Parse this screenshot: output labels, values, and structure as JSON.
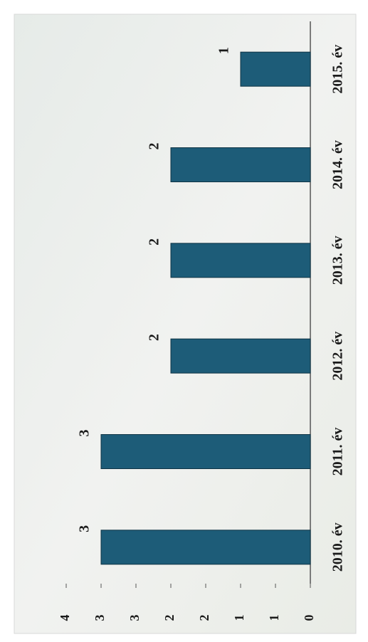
{
  "chart_data": {
    "type": "bar",
    "orientation": "horizontal",
    "categories": [
      "2010. év",
      "2011. év",
      "2012. év",
      "2013. év",
      "2014. év",
      "2015. év"
    ],
    "values": [
      3,
      3,
      2,
      2,
      2,
      1
    ],
    "color": "#1d5c78",
    "ylim": [
      0,
      3.5
    ],
    "yticks": [
      0,
      {
        "value": 0.5,
        "label": "1"
      },
      1,
      {
        "value": 1.5,
        "label": "2"
      },
      2,
      {
        "value": 2.5,
        "label": "3"
      },
      3,
      {
        "value": 3.5,
        "label": "4"
      }
    ]
  }
}
